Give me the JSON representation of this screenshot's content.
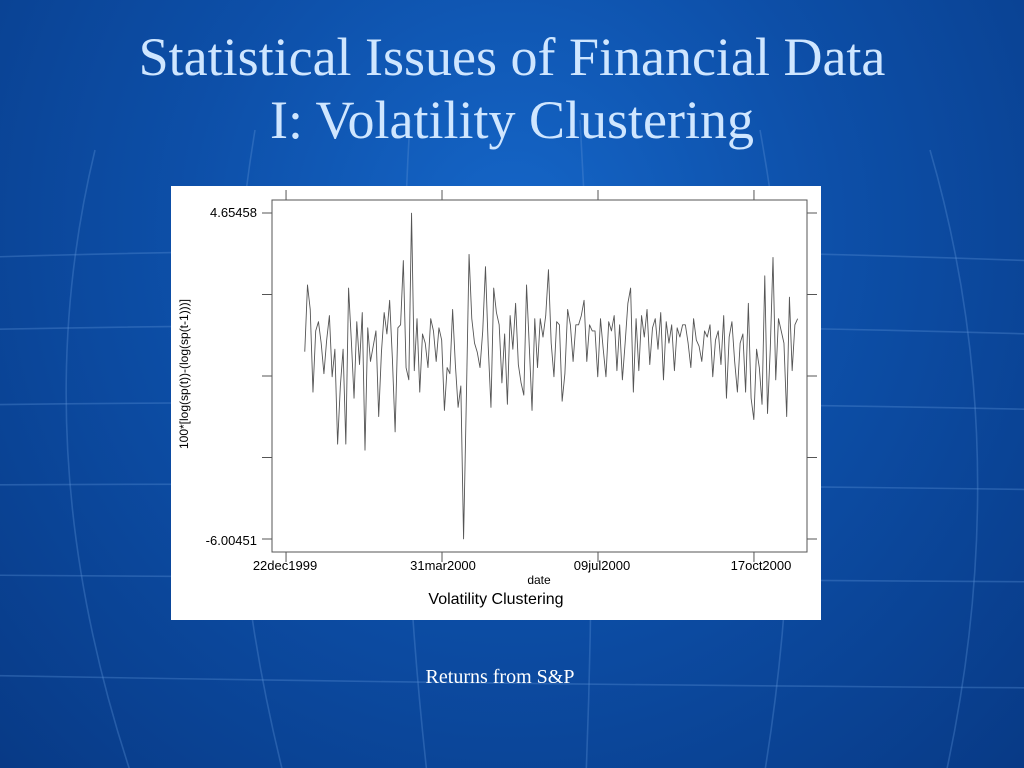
{
  "slide": {
    "title_line1": "Statistical Issues of Financial Data",
    "title_line2": "I:  Volatility Clustering",
    "caption": "Returns from S&P"
  },
  "colors": {
    "background": "#0d4fa8",
    "title": "#cfe6ff",
    "caption": "#ffffff",
    "series_line": "#555555"
  },
  "chart_data": {
    "type": "line",
    "title": "Volatility Clustering",
    "xlabel": "date",
    "ylabel": "100*[log(sp(t))-(log(sp(t-1)))]",
    "y_tick_labels": [
      "4.65458",
      "-6.00451"
    ],
    "ylim": [
      -6.00451,
      4.65458
    ],
    "x_tick_labels": [
      "22dec1999",
      "31mar2000",
      "09jul2000",
      "17oct2000"
    ],
    "xlim": [
      "1999-12-13",
      "2000-11-20"
    ],
    "grid": false,
    "series": [
      {
        "values_start": "2000-01-03",
        "values_end": "2000-11-14",
        "values": [
          0.12,
          2.3,
          1.5,
          -1.2,
          0.8,
          1.1,
          0.4,
          -0.6,
          0.5,
          1.3,
          -0.7,
          0.2,
          -2.9,
          -1.0,
          0.2,
          -2.9,
          2.2,
          0.5,
          -1.4,
          1.1,
          -0.3,
          1.4,
          -3.1,
          0.9,
          -0.2,
          0.3,
          0.8,
          -2.0,
          0.1,
          1.4,
          0.7,
          1.8,
          -0.1,
          -2.5,
          0.9,
          1.0,
          3.1,
          -0.4,
          -0.8,
          4.65,
          -0.5,
          1.2,
          -1.2,
          0.7,
          0.4,
          -0.4,
          1.2,
          0.8,
          -0.2,
          0.9,
          0.5,
          -1.8,
          -0.4,
          -0.6,
          1.5,
          -0.3,
          -1.7,
          -1.0,
          -6.0,
          -1.5,
          3.3,
          1.2,
          0.4,
          0.1,
          -0.4,
          0.8,
          2.9,
          0.3,
          -1.7,
          2.2,
          1.4,
          1.0,
          -0.9,
          0.7,
          -1.6,
          1.3,
          0.2,
          1.7,
          -0.3,
          -0.9,
          -1.3,
          2.3,
          0.3,
          -1.8,
          1.2,
          -0.4,
          1.2,
          0.6,
          1.3,
          2.8,
          0.4,
          -0.7,
          1.1,
          1.0,
          -1.5,
          -0.6,
          1.5,
          1.0,
          -0.2,
          1.0,
          1.0,
          1.3,
          1.8,
          -0.2,
          1.0,
          0.8,
          0.8,
          -0.7,
          1.2,
          0.2,
          -0.7,
          1.1,
          0.8,
          1.3,
          -0.5,
          1.0,
          -0.8,
          0.4,
          1.7,
          2.2,
          -1.2,
          1.2,
          -0.5,
          1.3,
          0.6,
          1.5,
          -0.3,
          0.9,
          1.2,
          0.2,
          1.4,
          -0.8,
          1.1,
          0.4,
          1.0,
          -0.5,
          0.9,
          0.6,
          1.0,
          1.0,
          0.4,
          -0.4,
          1.2,
          0.5,
          0.3,
          -0.2,
          0.8,
          0.6,
          1.0,
          -0.7,
          0.5,
          0.8,
          -0.3,
          1.3,
          -1.4,
          0.6,
          1.1,
          -0.2,
          -1.2,
          0.4,
          0.7,
          -1.2,
          1.7,
          -1.4,
          -2.1,
          0.2,
          -0.4,
          -1.6,
          2.6,
          -1.9,
          0.2,
          3.2,
          -0.8,
          1.2,
          0.8,
          0.4,
          -2.0,
          1.9,
          -0.5,
          1.0,
          1.2
        ]
      }
    ]
  }
}
